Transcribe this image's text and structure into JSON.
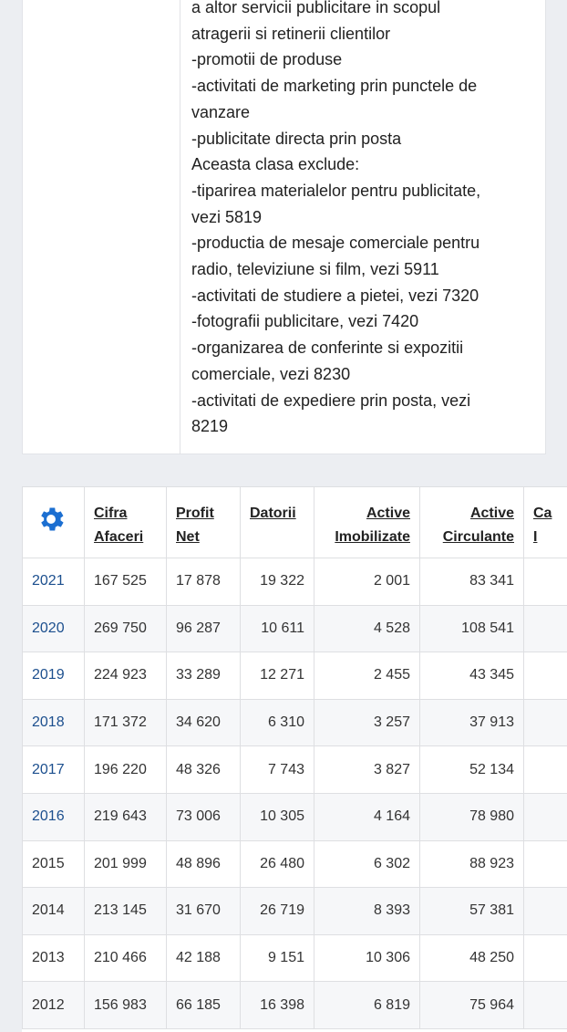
{
  "description": {
    "lines": [
      "a altor servicii publicitare in scopul",
      "atragerii si retinerii clientilor",
      "-promotii de produse",
      "-activitati de marketing prin punctele de",
      "vanzare",
      "-publicitate directa prin posta",
      "Aceasta clasa exclude:",
      "-tiparirea materialelor pentru publicitate,",
      "vezi 5819",
      "-productia de mesaje comerciale pentru",
      "radio, televiziune si film, vezi 5911",
      "-activitati de studiere a pietei, vezi 7320",
      "-fotografii publicitare, vezi 7420",
      "-organizarea de conferinte si expozitii",
      "comerciale, vezi 8230",
      "-activitati de expediere prin posta, vezi",
      "8219"
    ]
  },
  "table": {
    "settings_icon": "gear-icon",
    "accent_color": "#1c6fd1",
    "headers": {
      "cifra": [
        "Cifra",
        "Afaceri"
      ],
      "profit": [
        "Profit",
        "Net"
      ],
      "datorii": [
        "Datorii"
      ],
      "active_imob": [
        "Active",
        "Imobilizate"
      ],
      "active_circ": [
        "Active",
        "Circulante"
      ],
      "cut": [
        "Ca",
        "I"
      ]
    },
    "rows": [
      {
        "year": "2021",
        "cifra": "167 525",
        "profit": "17 878",
        "datorii": "19 322",
        "active_imob": "2 001",
        "active_circ": "83 341",
        "link": true
      },
      {
        "year": "2020",
        "cifra": "269 750",
        "profit": "96 287",
        "datorii": "10 611",
        "active_imob": "4 528",
        "active_circ": "108 541",
        "link": true
      },
      {
        "year": "2019",
        "cifra": "224 923",
        "profit": "33 289",
        "datorii": "12 271",
        "active_imob": "2 455",
        "active_circ": "43 345",
        "link": true
      },
      {
        "year": "2018",
        "cifra": "171 372",
        "profit": "34 620",
        "datorii": "6 310",
        "active_imob": "3 257",
        "active_circ": "37 913",
        "link": true
      },
      {
        "year": "2017",
        "cifra": "196 220",
        "profit": "48 326",
        "datorii": "7 743",
        "active_imob": "3 827",
        "active_circ": "52 134",
        "link": true
      },
      {
        "year": "2016",
        "cifra": "219 643",
        "profit": "73 006",
        "datorii": "10 305",
        "active_imob": "4 164",
        "active_circ": "78 980",
        "link": true
      },
      {
        "year": "2015",
        "cifra": "201 999",
        "profit": "48 896",
        "datorii": "26 480",
        "active_imob": "6 302",
        "active_circ": "88 923",
        "link": false
      },
      {
        "year": "2014",
        "cifra": "213 145",
        "profit": "31 670",
        "datorii": "26 719",
        "active_imob": "8 393",
        "active_circ": "57 381",
        "link": false
      },
      {
        "year": "2013",
        "cifra": "210 466",
        "profit": "42 188",
        "datorii": "9 151",
        "active_imob": "10 306",
        "active_circ": "48 250",
        "link": false
      },
      {
        "year": "2012",
        "cifra": "156 983",
        "profit": "66 185",
        "datorii": "16 398",
        "active_imob": "6 819",
        "active_circ": "75 964",
        "link": false
      }
    ]
  }
}
